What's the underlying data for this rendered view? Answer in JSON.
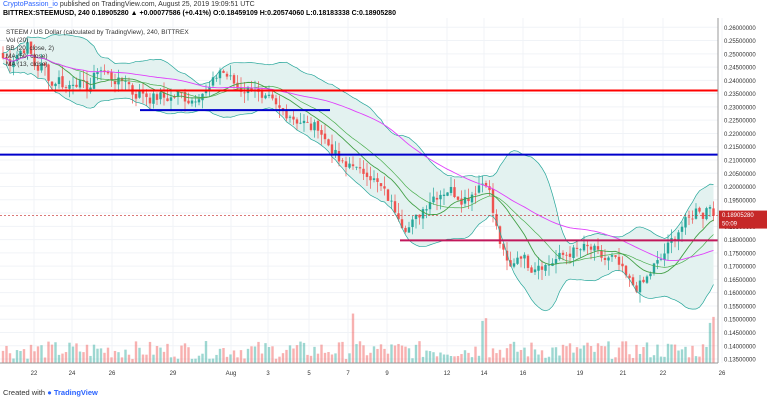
{
  "header": {
    "author": "CryptoPassion_io",
    "published": " published on TradingView.com, August 25, 2019 19:09:51 UTC",
    "ohlc": "BITTREX:STEEMUSD, 240  0.18905280 ▲ +0.00077586 (+0.41%) O:0.18459109 H:0.20574060 L:0.18183338 C:0.18905280"
  },
  "overlay": {
    "title": "STEEM / US Dollar (calculated by TradingView), 240, BITTREX",
    "vol": "Vol (20)",
    "bb": "BB (20, close, 2)",
    "ma1": "MA (50, close)",
    "ma2": "MA (13, close)"
  },
  "footer": {
    "created": "Created with",
    "brand": "TradingView"
  },
  "colors": {
    "up": "#26a69a",
    "down": "#ef5350",
    "ma_long": "#e040fb",
    "ma_short": "#43a047",
    "bb_fill": "#e3f2f0",
    "bb_line": "#4caf50",
    "red_line": "#ff0000",
    "blue_line": "#0000cc",
    "magenta_line": "#c2185b",
    "price_tag": "#c62828"
  },
  "chart_data": {
    "type": "candlestick",
    "title": "STEEM / US Dollar (calculated by TradingView), 240, BITTREX",
    "x_ticks": [
      "22",
      "24",
      "26",
      "29",
      "Aug",
      "3",
      "5",
      "7",
      "9",
      "12",
      "14",
      "16",
      "19",
      "21",
      "22",
      "26"
    ],
    "y_ticks": [
      "0.26000000",
      "0.25500000",
      "0.25000000",
      "0.24500000",
      "0.24000000",
      "0.23500000",
      "0.23000000",
      "0.22500000",
      "0.22000000",
      "0.21500000",
      "0.21000000",
      "0.20500000",
      "0.20000000",
      "0.19500000",
      "0.19000000",
      "0.18500000",
      "0.18000000",
      "0.17500000",
      "0.17000000",
      "0.16500000",
      "0.16000000",
      "0.15500000",
      "0.15000000",
      "0.14500000",
      "0.14000000",
      "0.13500000"
    ],
    "ylim": [
      0.1335,
      0.2635
    ],
    "last_price": "0.18905280",
    "countdown": "50:09",
    "close_anchors": [
      [
        0,
        0.249
      ],
      [
        10,
        0.247
      ],
      [
        20,
        0.251
      ],
      [
        28,
        0.253
      ],
      [
        36,
        0.244
      ],
      [
        44,
        0.246
      ],
      [
        52,
        0.238
      ],
      [
        58,
        0.241
      ],
      [
        66,
        0.237
      ],
      [
        74,
        0.24
      ],
      [
        82,
        0.238
      ],
      [
        90,
        0.237
      ],
      [
        98,
        0.245
      ],
      [
        108,
        0.242
      ],
      [
        118,
        0.239
      ],
      [
        126,
        0.241
      ],
      [
        134,
        0.234
      ],
      [
        142,
        0.236
      ],
      [
        150,
        0.233
      ],
      [
        160,
        0.234
      ],
      [
        170,
        0.233
      ],
      [
        180,
        0.235
      ],
      [
        190,
        0.232
      ],
      [
        200,
        0.235
      ],
      [
        208,
        0.236
      ],
      [
        214,
        0.24
      ],
      [
        220,
        0.244
      ],
      [
        226,
        0.242
      ],
      [
        232,
        0.24
      ],
      [
        238,
        0.237
      ],
      [
        246,
        0.236
      ],
      [
        254,
        0.238
      ],
      [
        262,
        0.232
      ],
      [
        270,
        0.233
      ],
      [
        276,
        0.23
      ],
      [
        284,
        0.228
      ],
      [
        290,
        0.227
      ],
      [
        296,
        0.225
      ],
      [
        304,
        0.224
      ],
      [
        312,
        0.222
      ],
      [
        318,
        0.223
      ],
      [
        324,
        0.218
      ],
      [
        332,
        0.214
      ],
      [
        340,
        0.209
      ],
      [
        346,
        0.207
      ],
      [
        352,
        0.21
      ],
      [
        358,
        0.205
      ],
      [
        366,
        0.206
      ],
      [
        372,
        0.203
      ],
      [
        380,
        0.2
      ],
      [
        386,
        0.197
      ],
      [
        392,
        0.193
      ],
      [
        398,
        0.19
      ],
      [
        402,
        0.186
      ],
      [
        408,
        0.184
      ],
      [
        414,
        0.187
      ],
      [
        420,
        0.19
      ],
      [
        426,
        0.193
      ],
      [
        432,
        0.196
      ],
      [
        438,
        0.197
      ],
      [
        444,
        0.198
      ],
      [
        450,
        0.199
      ],
      [
        456,
        0.197
      ],
      [
        462,
        0.195
      ],
      [
        468,
        0.196
      ],
      [
        474,
        0.198
      ],
      [
        480,
        0.201
      ],
      [
        486,
        0.202
      ],
      [
        490,
        0.197
      ],
      [
        494,
        0.188
      ],
      [
        498,
        0.182
      ],
      [
        502,
        0.176
      ],
      [
        506,
        0.172
      ],
      [
        510,
        0.169
      ],
      [
        514,
        0.172
      ],
      [
        520,
        0.175
      ],
      [
        526,
        0.172
      ],
      [
        532,
        0.169
      ],
      [
        538,
        0.171
      ],
      [
        546,
        0.17
      ],
      [
        554,
        0.172
      ],
      [
        562,
        0.174
      ],
      [
        570,
        0.175
      ],
      [
        578,
        0.176
      ],
      [
        586,
        0.177
      ],
      [
        594,
        0.176
      ],
      [
        600,
        0.174
      ],
      [
        606,
        0.172
      ],
      [
        612,
        0.173
      ],
      [
        618,
        0.171
      ],
      [
        624,
        0.167
      ],
      [
        630,
        0.164
      ],
      [
        636,
        0.162
      ],
      [
        642,
        0.163
      ],
      [
        648,
        0.166
      ],
      [
        654,
        0.17
      ],
      [
        660,
        0.172
      ],
      [
        666,
        0.176
      ],
      [
        672,
        0.18
      ],
      [
        678,
        0.183
      ],
      [
        684,
        0.186
      ],
      [
        690,
        0.188
      ],
      [
        696,
        0.191
      ],
      [
        700,
        0.192
      ],
      [
        704,
        0.188
      ],
      [
        708,
        0.194
      ],
      [
        712,
        0.192
      ],
      [
        716,
        0.189
      ]
    ],
    "horizontal_lines": [
      {
        "color": "red",
        "price": 0.2362,
        "x_from": 0,
        "x_to": 718
      },
      {
        "color": "blue",
        "price": 0.212,
        "x_from": 0,
        "x_to": 718
      },
      {
        "color": "blue",
        "price": 0.2288,
        "x_from": 140,
        "x_to": 330
      },
      {
        "color": "magenta",
        "price": 0.1797,
        "x_from": 400,
        "x_to": 718
      }
    ]
  }
}
